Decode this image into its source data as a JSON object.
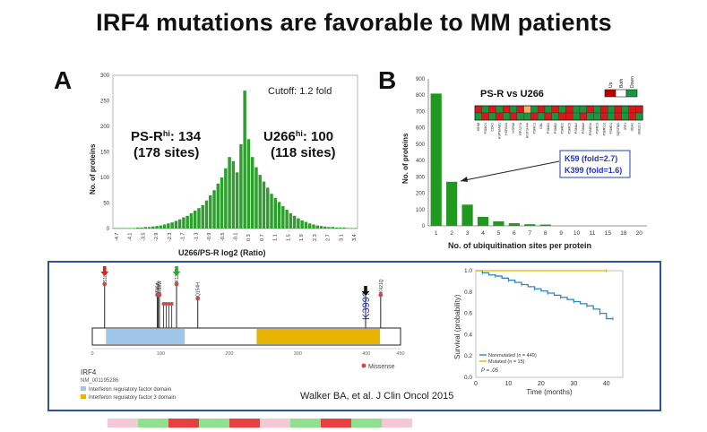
{
  "slide": {
    "title": "IRF4 mutations are favorable to MM patients",
    "citation": "Walker BA, et al. J Clin Oncol 2015"
  },
  "panel_a": {
    "letter": "A",
    "cutoff": "Cutoff: 1.2 fold",
    "left_label_main": "PS-R",
    "left_label_sup": "hi",
    "left_label_val": ": 134",
    "left_sites": "(178 sites)",
    "right_label_main": "U266",
    "right_label_sup": "hi",
    "right_label_val": ": 100",
    "right_sites": "(118 sites)",
    "bar_color": "#2e9e2e",
    "chart_data": {
      "type": "bar",
      "xlabel": "U266/PS-R log2 (Ratio)",
      "ylabel": "No. of proteins",
      "ylim": [
        0,
        300
      ],
      "yticks": [
        0,
        50,
        100,
        150,
        200,
        250,
        300
      ],
      "xticks": [
        "-4.7",
        "-4.1",
        "-3.5",
        "-2.9",
        "-2.3",
        "-1.7",
        "-1.3",
        "-0.9",
        "-0.5",
        "-0.1",
        "0.3",
        "0.7",
        "1.1",
        "1.5",
        "1.9",
        "2.3",
        "2.7",
        "3.1",
        "3.4"
      ],
      "values": [
        1,
        1,
        1,
        1,
        1,
        1,
        2,
        2,
        3,
        3,
        4,
        5,
        6,
        8,
        10,
        12,
        15,
        18,
        22,
        25,
        30,
        35,
        40,
        46,
        55,
        65,
        75,
        88,
        100,
        118,
        140,
        132,
        110,
        165,
        270,
        175,
        140,
        120,
        105,
        92,
        80,
        68,
        60,
        52,
        44,
        37,
        30,
        25,
        20,
        16,
        13,
        10,
        8,
        6,
        5,
        4,
        3,
        3,
        2,
        2,
        2,
        1,
        1,
        1
      ]
    }
  },
  "panel_b": {
    "letter": "B",
    "heatmap_title": "PS-R vs U266",
    "heatmap_legend": [
      "Up",
      "Both",
      "Down"
    ],
    "heatmap_rows": [
      [
        "#d7191c",
        "#1a9641",
        "#d7191c",
        "#1a9641",
        "#d7191c",
        "#1a9641",
        "#d7191c",
        "#fdae61",
        "#1a9641",
        "#d7191c",
        "#1a9641",
        "#d7191c",
        "#1a9641",
        "#d7191c",
        "#1a9641",
        "#1a9641",
        "#d7191c",
        "#1a9641",
        "#d7191c",
        "#1a9641",
        "#d7191c",
        "#1a9641",
        "#d7191c",
        "#d7191c"
      ],
      [
        "#1a9641",
        "#d7191c",
        "#1a9641",
        "#d7191c",
        "#1a9641",
        "#d7191c",
        "#1a9641",
        "#1a9641",
        "#d7191c",
        "#1a9641",
        "#d7191c",
        "#1a9641",
        "#d7191c",
        "#d7191c",
        "#1a9641",
        "#d7191c",
        "#1a9641",
        "#1a9641",
        "#d7191c",
        "#1a9641",
        "#d7191c",
        "#1a9641",
        "#d7191c",
        "#1a9641"
      ]
    ],
    "gene_labels": [
      "IGHM",
      "PSMC4",
      "CDK1",
      "HSP90AB1",
      "HSPA1A",
      "HSPA8",
      "RPS27A",
      "HIST1H4A",
      "PSMC2",
      "CBL",
      "PSMA1",
      "PSMB2",
      "PSMD2",
      "PSMC5",
      "PSMA4",
      "PSMA6",
      "PSMD11",
      "PSMC3",
      "PSMD12",
      "PSMD4",
      "SQSTM1",
      "IRF4",
      "UBA1",
      "UBE2L3"
    ],
    "annotation_line1": "K59 (fold=2.7)",
    "annotation_line2": "K399 (fold=1.6)",
    "bar_color": "#1f9a1f",
    "chart_data": {
      "type": "bar",
      "xlabel": "No. of ubiquitination sites per protein",
      "ylabel": "No. of proteins",
      "ylim": [
        0,
        900
      ],
      "yticks": [
        0,
        100,
        200,
        300,
        400,
        500,
        600,
        700,
        800,
        900
      ],
      "categories": [
        "1",
        "2",
        "3",
        "4",
        "5",
        "6",
        "7",
        "8",
        "9",
        "10",
        "11",
        "15",
        "18",
        "20"
      ],
      "values": [
        810,
        270,
        130,
        55,
        28,
        16,
        10,
        8,
        0,
        0,
        0,
        0,
        0,
        0
      ]
    }
  },
  "panel_c": {
    "gene": "IRF4",
    "transcript": "NM_001195286",
    "domain1": "Interferon regulatory factor domain",
    "domain2": "Interferon regulatory factor 3 domain",
    "missense_legend": "Missense",
    "k399_label": "K399?",
    "mutation_labels": [
      "S18R",
      "T95A",
      "D96N",
      "R98W",
      "K123R",
      "Q154H",
      "K399?",
      "K421Q"
    ],
    "domain1_color": "#9fc5e8",
    "domain2_color": "#e6b400",
    "axis_ticks": [
      "0",
      "100",
      "200",
      "300",
      "400",
      "450"
    ],
    "survival": {
      "ylabel": "Survival (probability)",
      "xlabel": "Time (months)",
      "yticks": [
        "0.0",
        "0.2",
        "0.4",
        "0.6",
        "0.8",
        "1.0"
      ],
      "xticks": [
        "0",
        "10",
        "20",
        "30",
        "40"
      ],
      "legend_nonmut": "Nonmutated (n = 449)",
      "legend_mut": "Mutated (n = 15)",
      "pvalue": "P = .05",
      "nonmut_color": "#2e86c1",
      "mut_color": "#e6b400",
      "chart_data": {
        "type": "line",
        "xlim": [
          0,
          45
        ],
        "ylim": [
          0,
          1
        ],
        "series": [
          {
            "name": "Nonmutated (n = 449)",
            "x": [
              0,
              2,
              4,
              6,
              8,
              10,
              12,
              14,
              16,
              18,
              20,
              22,
              24,
              26,
              28,
              30,
              32,
              34,
              36,
              38,
              40,
              42
            ],
            "y": [
              1.0,
              0.98,
              0.96,
              0.95,
              0.93,
              0.91,
              0.89,
              0.87,
              0.85,
              0.83,
              0.81,
              0.79,
              0.77,
              0.75,
              0.73,
              0.71,
              0.69,
              0.67,
              0.64,
              0.6,
              0.55,
              0.55
            ]
          },
          {
            "name": "Mutated (n = 15)",
            "x": [
              0,
              40
            ],
            "y": [
              1.0,
              1.0
            ]
          }
        ]
      }
    }
  }
}
